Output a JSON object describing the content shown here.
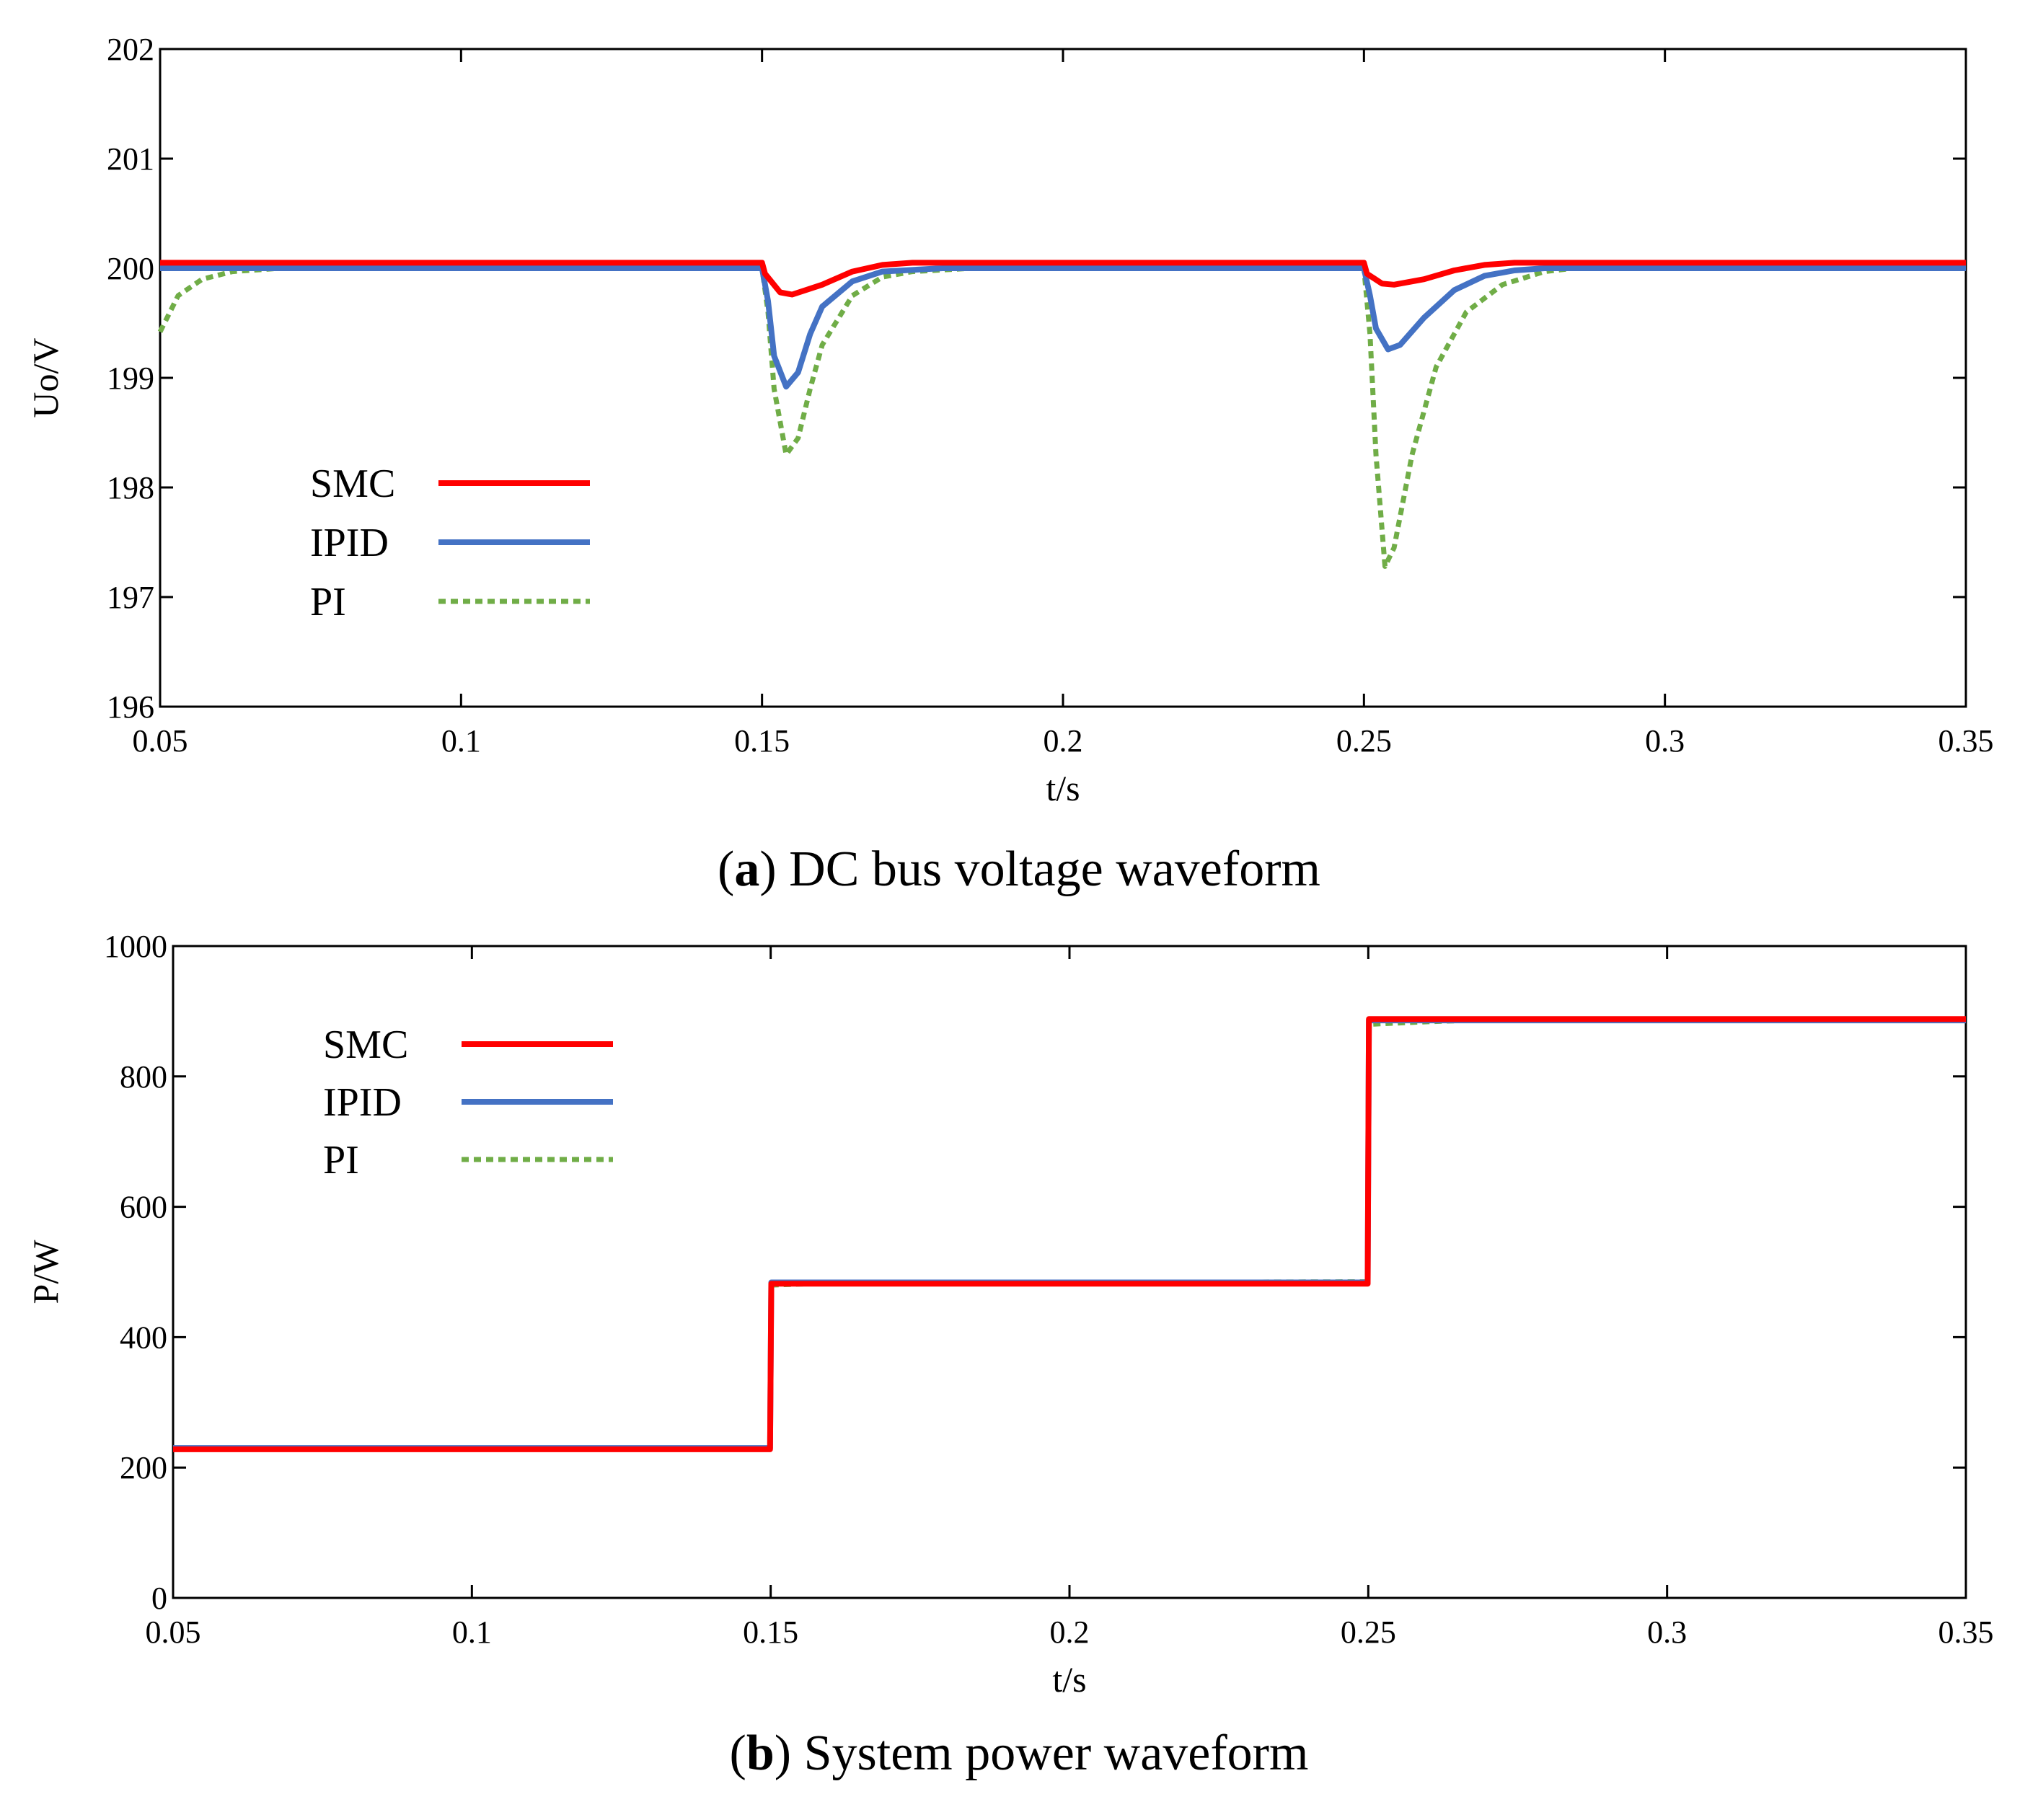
{
  "figure": {
    "captions": [
      {
        "letter": "a",
        "text": " DC bus voltage waveform"
      },
      {
        "letter": "b",
        "text": " System power waveform"
      }
    ]
  },
  "chart_data": [
    {
      "type": "line",
      "title": "DC bus voltage waveform",
      "xlabel": "t/s",
      "ylabel": "Uo/V",
      "xlim": [
        0.05,
        0.35
      ],
      "ylim": [
        196,
        202
      ],
      "xticks": [
        0.05,
        0.1,
        0.15,
        0.2,
        0.25,
        0.3,
        0.35
      ],
      "xtick_labels": [
        "0.05",
        "0.1",
        "0.15",
        "0.2",
        "0.25",
        "0.3",
        "0.35"
      ],
      "yticks": [
        196,
        197,
        198,
        199,
        200,
        201,
        202
      ],
      "ytick_labels": [
        "196",
        "197",
        "198",
        "199",
        "200",
        "201",
        "202"
      ],
      "legend_position": "left",
      "series": [
        {
          "name": "SMC",
          "color": "#ff0000",
          "style": "solid",
          "points": [
            [
              0.05,
              200.05
            ],
            [
              0.15,
              200.05
            ],
            [
              0.1505,
              199.95
            ],
            [
              0.153,
              199.78
            ],
            [
              0.155,
              199.76
            ],
            [
              0.16,
              199.85
            ],
            [
              0.165,
              199.97
            ],
            [
              0.17,
              200.03
            ],
            [
              0.175,
              200.05
            ],
            [
              0.25,
              200.05
            ],
            [
              0.2505,
              199.95
            ],
            [
              0.253,
              199.86
            ],
            [
              0.255,
              199.85
            ],
            [
              0.26,
              199.9
            ],
            [
              0.265,
              199.98
            ],
            [
              0.27,
              200.03
            ],
            [
              0.275,
              200.05
            ],
            [
              0.35,
              200.05
            ]
          ]
        },
        {
          "name": "IPID",
          "color": "#4472c4",
          "style": "solid",
          "points": [
            [
              0.05,
              200.0
            ],
            [
              0.15,
              200.0
            ],
            [
              0.151,
              199.7
            ],
            [
              0.152,
              199.2
            ],
            [
              0.154,
              198.92
            ],
            [
              0.156,
              199.05
            ],
            [
              0.158,
              199.4
            ],
            [
              0.16,
              199.65
            ],
            [
              0.165,
              199.88
            ],
            [
              0.17,
              199.97
            ],
            [
              0.18,
              200.0
            ],
            [
              0.25,
              200.0
            ],
            [
              0.251,
              199.75
            ],
            [
              0.252,
              199.45
            ],
            [
              0.254,
              199.26
            ],
            [
              0.256,
              199.3
            ],
            [
              0.26,
              199.55
            ],
            [
              0.265,
              199.8
            ],
            [
              0.27,
              199.93
            ],
            [
              0.275,
              199.98
            ],
            [
              0.28,
              200.0
            ],
            [
              0.35,
              200.0
            ]
          ]
        },
        {
          "name": "PI",
          "color": "#70ad47",
          "style": "dashed",
          "points": [
            [
              0.05,
              199.42
            ],
            [
              0.053,
              199.75
            ],
            [
              0.057,
              199.9
            ],
            [
              0.062,
              199.97
            ],
            [
              0.07,
              200.0
            ],
            [
              0.15,
              200.0
            ],
            [
              0.151,
              199.6
            ],
            [
              0.152,
              198.9
            ],
            [
              0.154,
              198.3
            ],
            [
              0.156,
              198.45
            ],
            [
              0.158,
              198.9
            ],
            [
              0.16,
              199.3
            ],
            [
              0.165,
              199.75
            ],
            [
              0.17,
              199.92
            ],
            [
              0.175,
              199.97
            ],
            [
              0.185,
              200.0
            ],
            [
              0.25,
              200.0
            ],
            [
              0.251,
              199.4
            ],
            [
              0.252,
              198.3
            ],
            [
              0.2535,
              197.28
            ],
            [
              0.255,
              197.45
            ],
            [
              0.258,
              198.3
            ],
            [
              0.262,
              199.1
            ],
            [
              0.267,
              199.6
            ],
            [
              0.273,
              199.85
            ],
            [
              0.28,
              199.97
            ],
            [
              0.285,
              200.0
            ],
            [
              0.35,
              200.0
            ]
          ]
        }
      ]
    },
    {
      "type": "line",
      "title": "System power waveform",
      "xlabel": "t/s",
      "ylabel": "P/W",
      "xlim": [
        0.05,
        0.35
      ],
      "ylim": [
        0,
        1000
      ],
      "xticks": [
        0.05,
        0.1,
        0.15,
        0.2,
        0.25,
        0.3,
        0.35
      ],
      "xtick_labels": [
        "0.05",
        "0.1",
        "0.15",
        "0.2",
        "0.25",
        "0.3",
        "0.35"
      ],
      "yticks": [
        0,
        200,
        400,
        600,
        800,
        1000
      ],
      "ytick_labels": [
        "0",
        "200",
        "400",
        "600",
        "800",
        "1000"
      ],
      "legend_position": "top-left",
      "series": [
        {
          "name": "SMC",
          "color": "#ff0000",
          "style": "solid",
          "points": [
            [
              0.05,
              228
            ],
            [
              0.1499,
              228
            ],
            [
              0.1501,
              482
            ],
            [
              0.2499,
              482
            ],
            [
              0.2501,
              888
            ],
            [
              0.35,
              888
            ]
          ]
        },
        {
          "name": "IPID",
          "color": "#4472c4",
          "style": "solid",
          "points": [
            [
              0.05,
              230
            ],
            [
              0.1499,
              230
            ],
            [
              0.1501,
              484
            ],
            [
              0.2499,
              484
            ],
            [
              0.2501,
              886
            ],
            [
              0.35,
              886
            ]
          ]
        },
        {
          "name": "PI",
          "color": "#70ad47",
          "style": "dashed",
          "points": [
            [
              0.05,
              230
            ],
            [
              0.1499,
              230
            ],
            [
              0.1501,
              480
            ],
            [
              0.16,
              483
            ],
            [
              0.2499,
              485
            ],
            [
              0.2501,
              880
            ],
            [
              0.26,
              884
            ],
            [
              0.27,
              887
            ],
            [
              0.35,
              887
            ]
          ]
        }
      ]
    }
  ]
}
